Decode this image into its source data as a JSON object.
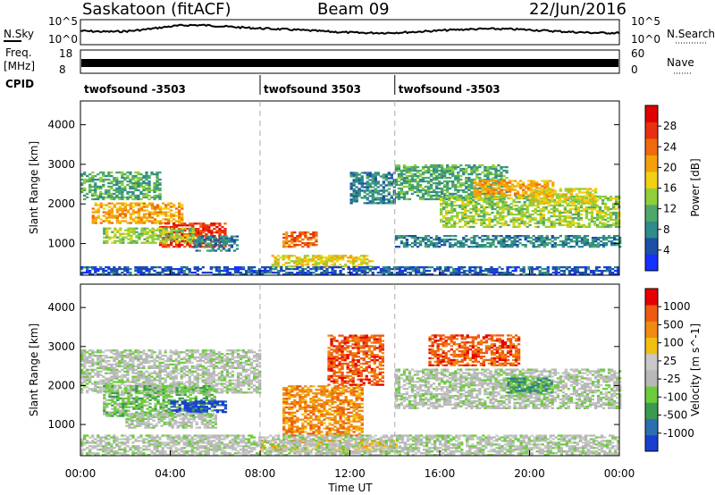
{
  "header": {
    "station": "Saskatoon (fitACF)",
    "beam": "Beam 09",
    "date": "22/Jun/2016"
  },
  "strip_labels": {
    "nsky": "N.Sky",
    "nsearch": "N.Search",
    "freq": "Freq.",
    "freq_unit": "[MHz]",
    "nave": "Nave",
    "cpid": "CPID"
  },
  "strip_ticks": {
    "nsky": [
      "10^5",
      "10^0"
    ],
    "nsearch": [
      "10^5",
      "10^0"
    ],
    "freq": [
      "18",
      "8"
    ],
    "nave": [
      "60",
      "0"
    ]
  },
  "cpid_segments": [
    {
      "label": "twofsound -3503",
      "start_hour": 0,
      "end_hour": 8
    },
    {
      "label": "twofsound 3503",
      "start_hour": 8,
      "end_hour": 14
    },
    {
      "label": "twofsound -3503",
      "start_hour": 14,
      "end_hour": 24
    }
  ],
  "axes": {
    "ylabel": "Slant Range [km]",
    "xlabel": "Time UT",
    "yticks": [
      1000,
      2000,
      3000,
      4000
    ],
    "ylim": [
      200,
      4600
    ],
    "xticks": [
      "00:00",
      "04:00",
      "08:00",
      "12:00",
      "16:00",
      "20:00",
      "00:00"
    ],
    "xlim_hours": [
      0,
      24
    ],
    "dashed_hours": [
      8,
      14
    ]
  },
  "power_scale": {
    "label": "Power [dB]",
    "ticks": [
      "4",
      "8",
      "12",
      "16",
      "20",
      "24",
      "28"
    ],
    "colors": [
      "#1630ff",
      "#1c4fa8",
      "#2f8c88",
      "#4fa86a",
      "#8fcf3a",
      "#f0d010",
      "#f4a00c",
      "#ee6a0c",
      "#e83010",
      "#e00000"
    ]
  },
  "velocity_scale": {
    "label": "Velocity [m s^-1]",
    "ticks": [
      "1000",
      "500",
      "100",
      "25",
      "-25",
      "-100",
      "-500",
      "-1000"
    ],
    "colors": [
      "#1a3fd0",
      "#2c6fb0",
      "#3c9a50",
      "#6ccc3c",
      "#b8b8b8",
      "#c8c8c8",
      "#f0c010",
      "#f08a10",
      "#ee5a10",
      "#e80000"
    ]
  },
  "chart_data": [
    {
      "type": "heatmap",
      "name": "power",
      "x_unit": "hours UT",
      "y_unit": "km",
      "xlim": [
        0,
        24
      ],
      "ylim": [
        200,
        4600
      ],
      "regions": [
        {
          "t0": 0.0,
          "t1": 3.5,
          "r0": 2100,
          "r1": 2800,
          "level": 3
        },
        {
          "t0": 0.5,
          "t1": 4.5,
          "r0": 1500,
          "r1": 2000,
          "level": 6
        },
        {
          "t0": 3.5,
          "t1": 6.5,
          "r0": 900,
          "r1": 1500,
          "level": 8
        },
        {
          "t0": 1.0,
          "t1": 5.0,
          "r0": 1000,
          "r1": 1400,
          "level": 4
        },
        {
          "t0": 5.0,
          "t1": 7.0,
          "r0": 800,
          "r1": 1200,
          "level": 2
        },
        {
          "t0": 9.0,
          "t1": 10.5,
          "r0": 900,
          "r1": 1300,
          "level": 7
        },
        {
          "t0": 8.5,
          "t1": 13.0,
          "r0": 400,
          "r1": 700,
          "level": 5
        },
        {
          "t0": 14.0,
          "t1": 19.0,
          "r0": 2100,
          "r1": 3000,
          "level": 3
        },
        {
          "t0": 16.0,
          "t1": 24.0,
          "r0": 1400,
          "r1": 2200,
          "level": 4
        },
        {
          "t0": 14.0,
          "t1": 24.0,
          "r0": 900,
          "r1": 1200,
          "level": 2
        },
        {
          "t0": 17.5,
          "t1": 21.0,
          "r0": 2200,
          "r1": 2600,
          "level": 6
        },
        {
          "t0": 20.0,
          "t1": 23.0,
          "r0": 2000,
          "r1": 2400,
          "level": 5
        },
        {
          "t0": 12.0,
          "t1": 14.0,
          "r0": 2000,
          "r1": 2800,
          "level": 2
        },
        {
          "t0": 0.0,
          "t1": 24.0,
          "r0": 200,
          "r1": 400,
          "level": 1
        }
      ]
    },
    {
      "type": "heatmap",
      "name": "velocity",
      "x_unit": "hours UT",
      "y_unit": "km",
      "xlim": [
        0,
        24
      ],
      "ylim": [
        200,
        4600
      ],
      "regions": [
        {
          "t0": 0.0,
          "t1": 8.0,
          "r0": 1800,
          "r1": 2900,
          "level": 4
        },
        {
          "t0": 1.0,
          "t1": 6.0,
          "r0": 1200,
          "r1": 2000,
          "level": 3
        },
        {
          "t0": 4.0,
          "t1": 6.5,
          "r0": 1300,
          "r1": 1600,
          "level": 0
        },
        {
          "t0": 2.0,
          "t1": 6.0,
          "r0": 900,
          "r1": 1300,
          "level": 4
        },
        {
          "t0": 9.0,
          "t1": 12.5,
          "r0": 700,
          "r1": 2000,
          "level": 7
        },
        {
          "t0": 11.0,
          "t1": 13.5,
          "r0": 2000,
          "r1": 3300,
          "level": 8
        },
        {
          "t0": 15.5,
          "t1": 19.5,
          "r0": 2500,
          "r1": 3300,
          "level": 8
        },
        {
          "t0": 14.0,
          "t1": 24.0,
          "r0": 1400,
          "r1": 2400,
          "level": 4
        },
        {
          "t0": 19.0,
          "t1": 21.0,
          "r0": 1800,
          "r1": 2200,
          "level": 2
        },
        {
          "t0": 8.0,
          "t1": 14.0,
          "r0": 300,
          "r1": 600,
          "level": 6
        },
        {
          "t0": 0.0,
          "t1": 24.0,
          "r0": 200,
          "r1": 700,
          "level": 4
        }
      ]
    }
  ]
}
